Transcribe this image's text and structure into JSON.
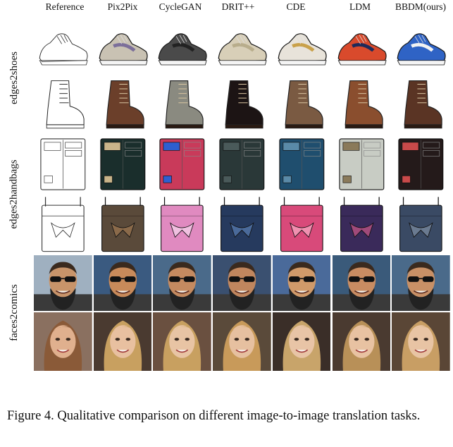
{
  "columns": [
    "Reference",
    "Pix2Pix",
    "CycleGAN",
    "DRIT++",
    "CDE",
    "LDM",
    "BBDM(ours)"
  ],
  "row_groups": [
    {
      "label": "edges2shoes",
      "rows": [
        "shoe",
        "boot"
      ]
    },
    {
      "label": "edges2handbags",
      "rows": [
        "wallet",
        "bag"
      ]
    },
    {
      "label": "faces2comics",
      "rows": [
        "man",
        "woman"
      ]
    }
  ],
  "caption": "Figure 4.  Qualitative comparison on different image-to-image translation tasks.",
  "colors": {
    "shoe": [
      "#ffffff",
      "#c9c2b3",
      "#4a4a4a",
      "#d8cfb8",
      "#e8e3da",
      "#d94a2c",
      "#2f63c5"
    ],
    "shoe_accent": [
      "#ffffff",
      "#7c6f9a",
      "#222222",
      "#b8ad8c",
      "#c9a14a",
      "#1e2a5a",
      "#f2f2f2"
    ],
    "boot": [
      "#ffffff",
      "#6b3f2a",
      "#8a8a80",
      "#1c1414",
      "#7a5a42",
      "#8a4e2e",
      "#5a3424"
    ],
    "wallet": [
      "#ffffff",
      "#1a2e2c",
      "#c93a5a",
      "#2a3838",
      "#1f4e6e",
      "#c8ccc4",
      "#241a1a"
    ],
    "wallet_accent": [
      "#ffffff",
      "#c9b48a",
      "#2f5fd0",
      "#4a5a5a",
      "#5a8aa8",
      "#8a7a5a",
      "#c94a4a"
    ],
    "bag": [
      "#ffffff",
      "#5a4a3a",
      "#e08ac0",
      "#263a5e",
      "#d84a7a",
      "#3a2a5a",
      "#3a4a64"
    ],
    "bag_accent": [
      "#ffffff",
      "#8a6a4a",
      "#f0c0e0",
      "#4a6a9a",
      "#f090b0",
      "#a04a7a",
      "#6a7a90"
    ],
    "man_bg": [
      "#9fb0c0",
      "#3a5a80",
      "#4a6a8a",
      "#3a5070",
      "#4a6a9a",
      "#3a5a7a",
      "#4a6a8a"
    ],
    "man_skin": [
      "#c8946a",
      "#c88a5a",
      "#c48a60",
      "#c0865e",
      "#d09a6a",
      "#c88c62",
      "#c89066"
    ],
    "woman_bg": [
      "#8a7060",
      "#4a3a30",
      "#6a5040",
      "#5a4a3a",
      "#3a2e28",
      "#4a3a30",
      "#5a4636"
    ],
    "woman_hair": [
      "#8a5a38",
      "#c8a060",
      "#c8a060",
      "#c89a5a",
      "#c8a46a",
      "#b89058",
      "#c89e64"
    ],
    "woman_skin": [
      "#e0b08e",
      "#e8c0a0",
      "#e8c4a4",
      "#e6c0a0",
      "#e8c4a6",
      "#e8c2a2",
      "#e8c4a4"
    ]
  }
}
